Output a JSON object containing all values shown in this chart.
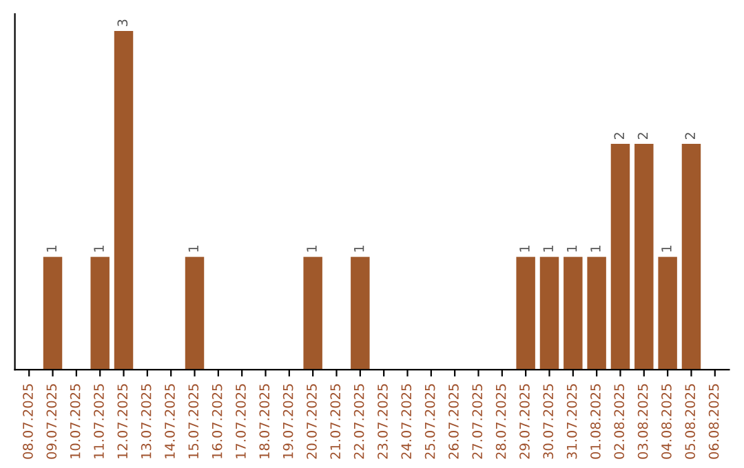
{
  "chart_data": {
    "type": "bar",
    "categories": [
      "08.07.2025",
      "09.07.2025",
      "10.07.2025",
      "11.07.2025",
      "12.07.2025",
      "13.07.2025",
      "14.07.2025",
      "15.07.2025",
      "16.07.2025",
      "17.07.2025",
      "18.07.2025",
      "19.07.2025",
      "20.07.2025",
      "21.07.2025",
      "22.07.2025",
      "23.07.2025",
      "24.07.2025",
      "25.07.2025",
      "26.07.2025",
      "27.07.2025",
      "28.07.2025",
      "29.07.2025",
      "30.07.2025",
      "31.07.2025",
      "01.08.2025",
      "02.08.2025",
      "03.08.2025",
      "04.08.2025",
      "05.08.2025",
      "06.08.2025"
    ],
    "values": [
      0,
      1,
      0,
      1,
      3,
      0,
      0,
      1,
      0,
      0,
      0,
      0,
      1,
      0,
      1,
      0,
      0,
      0,
      0,
      0,
      0,
      1,
      1,
      1,
      1,
      2,
      2,
      1,
      2,
      0
    ],
    "value_labels": [
      null,
      "1",
      null,
      "1",
      "3",
      null,
      null,
      "1",
      null,
      null,
      null,
      null,
      "1",
      null,
      "1",
      null,
      null,
      null,
      null,
      null,
      null,
      "1",
      "1",
      "1",
      "1",
      "2",
      "2",
      "1",
      "2",
      null
    ],
    "color": "#a0592b",
    "tick_labels": "x",
    "grid": false,
    "legend": false
  }
}
